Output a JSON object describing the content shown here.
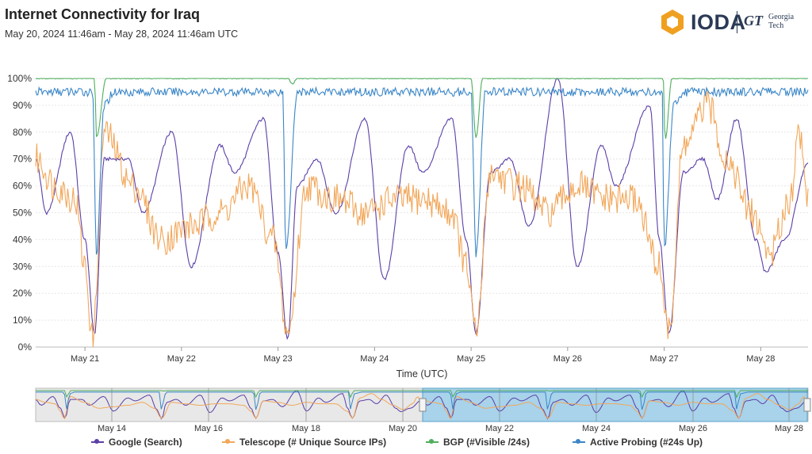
{
  "title": "Internet Connectivity for Iraq",
  "subtitle": "May 20, 2024 11:46am - May 28, 2024 11:46am UTC",
  "logo": {
    "name": "IODA",
    "gt_mark": "GT",
    "gt_text_1": "Georgia",
    "gt_text_2": "Tech"
  },
  "chart_data": {
    "type": "line",
    "xlabel": "Time (UTC)",
    "ylabel": "",
    "ylim": [
      0,
      100
    ],
    "y_ticks": [
      "0%",
      "10%",
      "20%",
      "30%",
      "40%",
      "50%",
      "60%",
      "70%",
      "80%",
      "90%",
      "100%"
    ],
    "x_ticks": [
      "May 21",
      "May 22",
      "May 23",
      "May 24",
      "May 25",
      "May 26",
      "May 27",
      "May 28"
    ],
    "x_tick_days": [
      1,
      2,
      3,
      4,
      5,
      6,
      7,
      8
    ],
    "x_range_days": [
      0.49,
      8.49
    ],
    "grid": true,
    "legend_position": "bottom",
    "series": [
      {
        "name": "Google (Search)",
        "color": "#5b3fa8",
        "points": [
          [
            0.49,
            70
          ],
          [
            0.6,
            50
          ],
          [
            0.85,
            80
          ],
          [
            1.0,
            40
          ],
          [
            1.1,
            5
          ],
          [
            1.2,
            70
          ],
          [
            1.45,
            70
          ],
          [
            1.6,
            50
          ],
          [
            1.9,
            80
          ],
          [
            2.1,
            30
          ],
          [
            2.4,
            75
          ],
          [
            2.55,
            65
          ],
          [
            2.85,
            85
          ],
          [
            3.0,
            35
          ],
          [
            3.1,
            3
          ],
          [
            3.2,
            60
          ],
          [
            3.4,
            70
          ],
          [
            3.6,
            50
          ],
          [
            3.9,
            85
          ],
          [
            4.1,
            25
          ],
          [
            4.35,
            75
          ],
          [
            4.5,
            65
          ],
          [
            4.8,
            85
          ],
          [
            4.95,
            40
          ],
          [
            5.05,
            5
          ],
          [
            5.2,
            65
          ],
          [
            5.4,
            70
          ],
          [
            5.6,
            45
          ],
          [
            5.9,
            100
          ],
          [
            6.1,
            30
          ],
          [
            6.35,
            75
          ],
          [
            6.5,
            60
          ],
          [
            6.85,
            90
          ],
          [
            6.95,
            40
          ],
          [
            7.05,
            5
          ],
          [
            7.2,
            65
          ],
          [
            7.4,
            70
          ],
          [
            7.55,
            55
          ],
          [
            7.75,
            85
          ],
          [
            7.95,
            40
          ],
          [
            8.05,
            28
          ],
          [
            8.25,
            40
          ],
          [
            8.49,
            68
          ]
        ]
      },
      {
        "name": "Telescope (# Unique Source IPs)",
        "color": "#f2a75a",
        "points": [
          [
            0.49,
            70
          ],
          [
            0.7,
            60
          ],
          [
            0.9,
            55
          ],
          [
            1.0,
            30
          ],
          [
            1.08,
            3
          ],
          [
            1.2,
            80
          ],
          [
            1.5,
            60
          ],
          [
            1.8,
            40
          ],
          [
            2.1,
            45
          ],
          [
            2.4,
            50
          ],
          [
            2.7,
            60
          ],
          [
            2.95,
            40
          ],
          [
            3.1,
            5
          ],
          [
            3.3,
            60
          ],
          [
            3.6,
            55
          ],
          [
            3.9,
            50
          ],
          [
            4.2,
            55
          ],
          [
            4.5,
            55
          ],
          [
            4.8,
            50
          ],
          [
            4.95,
            30
          ],
          [
            5.05,
            5
          ],
          [
            5.2,
            65
          ],
          [
            5.5,
            60
          ],
          [
            5.8,
            50
          ],
          [
            6.1,
            60
          ],
          [
            6.4,
            55
          ],
          [
            6.7,
            55
          ],
          [
            6.95,
            30
          ],
          [
            7.05,
            5
          ],
          [
            7.2,
            75
          ],
          [
            7.45,
            90
          ],
          [
            7.65,
            70
          ],
          [
            7.9,
            50
          ],
          [
            8.1,
            35
          ],
          [
            8.3,
            55
          ],
          [
            8.4,
            80
          ],
          [
            8.49,
            55
          ]
        ]
      },
      {
        "name": "BGP (#Visible /24s)",
        "color": "#4fae5c",
        "points": [
          [
            0.49,
            100
          ],
          [
            1.1,
            100
          ],
          [
            1.12,
            78
          ],
          [
            1.22,
            100
          ],
          [
            3.1,
            100
          ],
          [
            3.15,
            98
          ],
          [
            3.2,
            100
          ],
          [
            5.0,
            100
          ],
          [
            5.05,
            78
          ],
          [
            5.12,
            100
          ],
          [
            6.99,
            100
          ],
          [
            7.01,
            77
          ],
          [
            7.08,
            100
          ],
          [
            8.49,
            100
          ]
        ]
      },
      {
        "name": "Active Probing (#24s Up)",
        "color": "#3a86c8",
        "points": [
          [
            0.49,
            95
          ],
          [
            1.08,
            95
          ],
          [
            1.12,
            35
          ],
          [
            1.2,
            90
          ],
          [
            1.3,
            95
          ],
          [
            3.05,
            95
          ],
          [
            3.08,
            36
          ],
          [
            3.2,
            95
          ],
          [
            5.0,
            95
          ],
          [
            5.05,
            35
          ],
          [
            5.15,
            95
          ],
          [
            6.98,
            95
          ],
          [
            7.0,
            36
          ],
          [
            7.1,
            90
          ],
          [
            7.25,
            95
          ],
          [
            8.49,
            95
          ]
        ]
      }
    ],
    "navigator": {
      "x_ticks": [
        "May 14",
        "May 16",
        "May 18",
        "May 20",
        "May 22",
        "May 24",
        "May 26",
        "May 28"
      ],
      "selected_range": [
        "May 20",
        "May 28"
      ]
    }
  },
  "legend": [
    {
      "label": "Google (Search)",
      "color": "#5b3fa8"
    },
    {
      "label": "Telescope (# Unique Source IPs)",
      "color": "#f2a75a"
    },
    {
      "label": "BGP (#Visible /24s)",
      "color": "#4fae5c"
    },
    {
      "label": "Active Probing (#24s Up)",
      "color": "#3a86c8"
    }
  ]
}
